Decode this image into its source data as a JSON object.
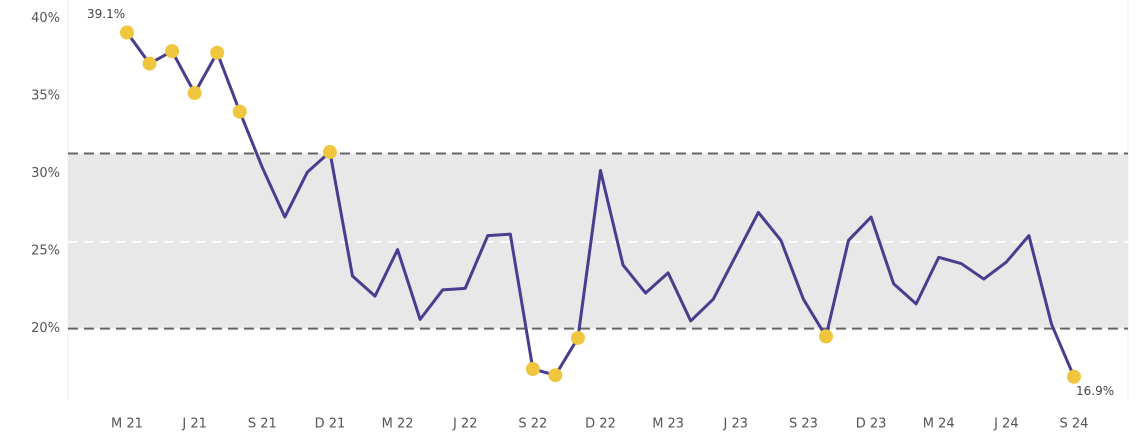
{
  "chart_data": {
    "type": "line",
    "categories": [
      "M 21",
      null,
      null,
      "J 21",
      null,
      null,
      "S 21",
      null,
      null,
      "D 21",
      null,
      null,
      "M 22",
      null,
      null,
      "J 22",
      null,
      null,
      "S 22",
      null,
      null,
      "D 22",
      null,
      null,
      "M 23",
      null,
      null,
      "J 23",
      null,
      null,
      "S 23",
      null,
      null,
      "D 23",
      null,
      null,
      "M 24",
      null,
      null,
      "J 24",
      null,
      null,
      "S 24"
    ],
    "series": [
      {
        "name": null,
        "color": "#4a3d8f",
        "values": [
          39.1,
          37.1,
          37.9,
          35.2,
          37.8,
          34.0,
          30.4,
          27.2,
          30.1,
          31.4,
          23.4,
          22.1,
          25.1,
          20.6,
          22.5,
          22.6,
          26.0,
          26.1,
          17.4,
          17.0,
          19.4,
          30.2,
          24.1,
          22.3,
          23.6,
          20.5,
          21.9,
          24.7,
          27.5,
          25.7,
          21.9,
          19.5,
          25.7,
          27.2,
          22.9,
          21.6,
          24.6,
          24.2,
          23.2,
          24.3,
          26.0,
          20.3,
          16.9
        ],
        "value_labels": [
          "39.1%",
          null,
          null,
          null,
          null,
          null,
          null,
          null,
          null,
          null,
          null,
          null,
          null,
          null,
          null,
          null,
          null,
          null,
          null,
          null,
          null,
          null,
          null,
          null,
          null,
          null,
          null,
          null,
          null,
          null,
          null,
          null,
          null,
          null,
          null,
          null,
          null,
          null,
          null,
          null,
          null,
          null,
          "16.9%"
        ]
      }
    ],
    "highlight_color": "#f0c63f",
    "band": {
      "lower": 20,
      "upper": 31.3,
      "center": 25.6,
      "color": "#e8e8e8"
    },
    "ylim": [
      15.4,
      41.2
    ],
    "yticks": [
      {
        "value": 20,
        "label": "20%"
      },
      {
        "value": 25,
        "label": "25%"
      },
      {
        "value": 30,
        "label": "30%"
      },
      {
        "value": 35,
        "label": "35%"
      },
      {
        "value": 40,
        "label": "40%"
      }
    ]
  }
}
